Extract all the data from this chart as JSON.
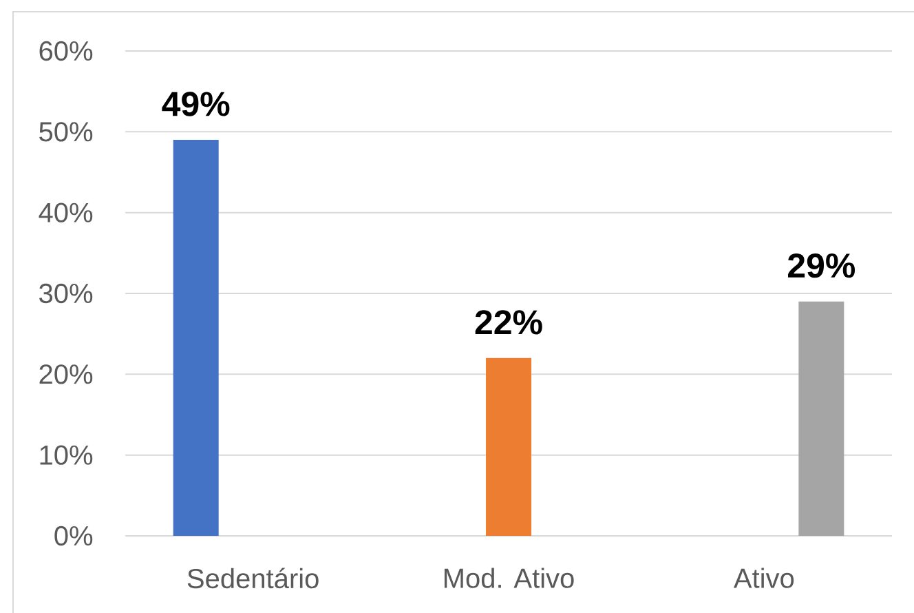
{
  "chart_data": {
    "type": "bar",
    "categories": [
      "Sedentário",
      "Mod. Ativo",
      "Ativo"
    ],
    "series": [
      {
        "color": "#4472c4",
        "values": [
          49,
          null,
          null
        ],
        "value_labels": [
          "49%",
          null,
          null
        ]
      },
      {
        "color": "#ed7d31",
        "values": [
          null,
          22,
          null
        ],
        "value_labels": [
          null,
          "22%",
          null
        ]
      },
      {
        "color": "#a5a5a5",
        "values": [
          null,
          null,
          29
        ],
        "value_labels": [
          null,
          null,
          "29%"
        ]
      }
    ],
    "ylim": [
      0,
      60
    ],
    "yticks": [
      {
        "value": 0,
        "label": "0%"
      },
      {
        "value": 10,
        "label": "10%"
      },
      {
        "value": 20,
        "label": "20%"
      },
      {
        "value": 30,
        "label": "30%"
      },
      {
        "value": 40,
        "label": "40%"
      },
      {
        "value": 50,
        "label": "50%"
      },
      {
        "value": 60,
        "label": "60%"
      }
    ],
    "grid": "y"
  }
}
